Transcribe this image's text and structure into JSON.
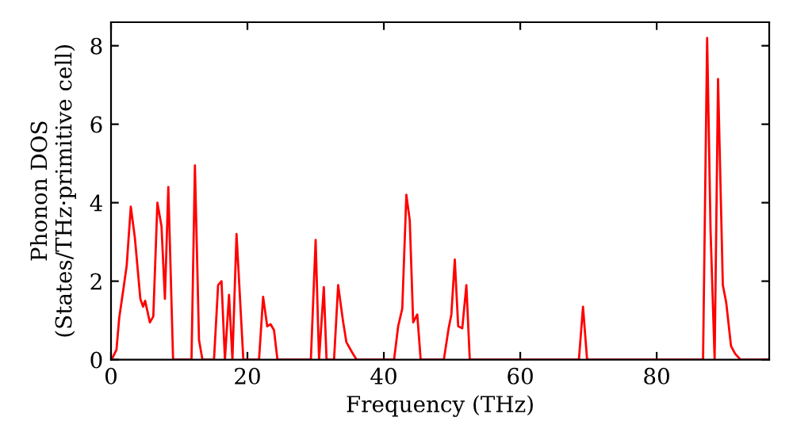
{
  "chart_data": {
    "type": "line",
    "xlabel": "Frequency (THz)",
    "ylabel": "Phonon DOS\n(States/THz·primitive cell)",
    "series": [
      {
        "color": "#ff0000",
        "x": [
          0,
          0.2,
          0.8,
          1.2,
          1.9,
          2.3,
          2.9,
          3.5,
          4.3,
          4.7,
          5.0,
          5.7,
          6.2,
          6.8,
          7.4,
          7.9,
          8.4,
          9.1,
          11.8,
          12.3,
          12.9,
          13.4,
          15.1,
          15.7,
          16.2,
          16.7,
          17.3,
          17.8,
          18.4,
          19.4,
          21.7,
          22.3,
          22.9,
          23.4,
          23.9,
          24.4,
          29.3,
          30.0,
          30.5,
          31.2,
          31.6,
          32.7,
          33.3,
          34.0,
          34.5,
          35.3,
          36.0,
          41.5,
          42.1,
          42.7,
          43.3,
          43.8,
          44.3,
          44.9,
          45.4,
          48.8,
          49.5,
          49.9,
          50.4,
          50.9,
          51.5,
          52.1,
          52.6,
          68.6,
          69.2,
          69.8,
          86.8,
          87.4,
          87.9,
          88.5,
          89.0,
          89.7,
          90.2,
          90.9,
          91.5,
          92.3,
          96.5
        ],
        "values": [
          0,
          0.04,
          0.25,
          1.06,
          1.9,
          2.4,
          3.9,
          3.1,
          1.55,
          1.35,
          1.5,
          0.95,
          1.1,
          4.0,
          3.4,
          1.55,
          4.4,
          0,
          0,
          4.95,
          0.5,
          0,
          0,
          1.9,
          2.0,
          0,
          1.65,
          0,
          3.2,
          0,
          0,
          1.6,
          0.85,
          0.9,
          0.75,
          0,
          0,
          3.05,
          0,
          1.85,
          0,
          0,
          1.9,
          1.0,
          0.45,
          0.2,
          0,
          0,
          0.85,
          1.3,
          4.2,
          3.55,
          0.95,
          1.15,
          0,
          0,
          0.8,
          1.15,
          2.55,
          0.85,
          0.8,
          1.9,
          0,
          0,
          1.35,
          0,
          0,
          8.2,
          3.3,
          0,
          7.15,
          1.9,
          1.45,
          0.35,
          0.15,
          0,
          0
        ]
      }
    ],
    "xlim": [
      0,
      96.5
    ],
    "ylim": [
      0,
      8.6
    ],
    "xticks": [
      0,
      20,
      40,
      60,
      80
    ],
    "yticks": [
      0,
      2,
      4,
      6,
      8
    ],
    "grid": false,
    "legend": false,
    "marker": "none",
    "line_style": "solid"
  }
}
